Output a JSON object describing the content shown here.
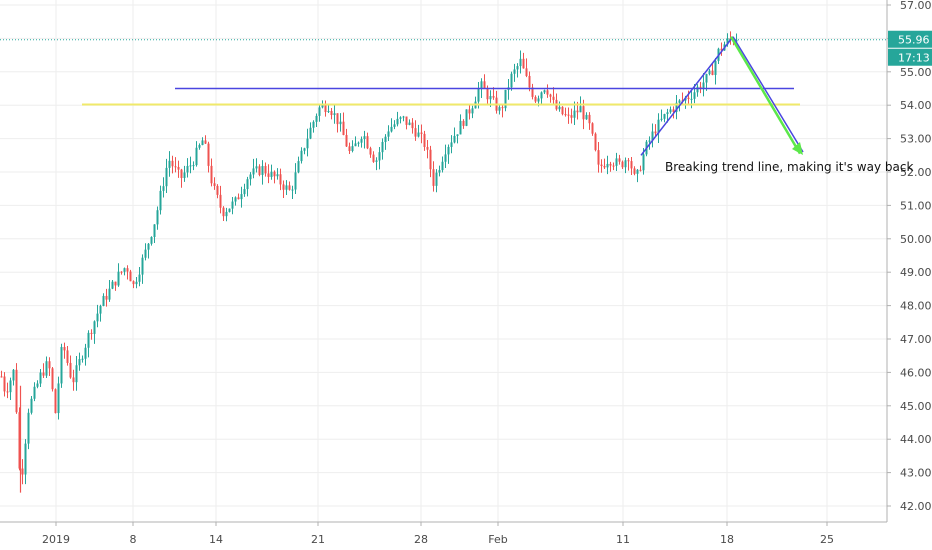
{
  "chart_data": {
    "type": "candlestick",
    "title": "",
    "xlabel": "",
    "ylabel": "",
    "ylim": [
      41.6,
      57.2
    ],
    "y_ticks": [
      "42.00",
      "43.00",
      "44.00",
      "45.00",
      "46.00",
      "47.00",
      "48.00",
      "49.00",
      "50.00",
      "51.00",
      "52.00",
      "53.00",
      "54.00",
      "55.00",
      "56.00",
      "57.00"
    ],
    "x_ticks": [
      "2019",
      "8",
      "14",
      "21",
      "28",
      "Feb",
      "11",
      "18",
      "25"
    ],
    "last_price": "55.96",
    "countdown": "17:13",
    "grid": true,
    "up_color": "#26a69a",
    "down_color": "#ef5350",
    "price_badge_color": "#26a69a",
    "timer_badge_color": "#26a69a",
    "waypoints": [
      [
        0,
        46.0
      ],
      [
        5,
        45.4
      ],
      [
        14,
        46.1
      ],
      [
        20,
        42.5
      ],
      [
        28,
        44.9
      ],
      [
        40,
        45.9
      ],
      [
        48,
        46.3
      ],
      [
        55,
        44.8
      ],
      [
        62,
        46.9
      ],
      [
        72,
        45.7
      ],
      [
        88,
        47.1
      ],
      [
        100,
        48.0
      ],
      [
        118,
        48.9
      ],
      [
        126,
        49.2
      ],
      [
        133,
        48.6
      ],
      [
        145,
        49.6
      ],
      [
        155,
        50.6
      ],
      [
        168,
        52.4
      ],
      [
        180,
        51.8
      ],
      [
        192,
        52.3
      ],
      [
        203,
        53.0
      ],
      [
        212,
        51.6
      ],
      [
        222,
        50.8
      ],
      [
        235,
        51.1
      ],
      [
        248,
        51.9
      ],
      [
        262,
        52.1
      ],
      [
        276,
        51.8
      ],
      [
        290,
        51.4
      ],
      [
        305,
        52.9
      ],
      [
        318,
        53.9
      ],
      [
        328,
        54.0
      ],
      [
        338,
        53.5
      ],
      [
        350,
        52.5
      ],
      [
        362,
        53.2
      ],
      [
        375,
        52.3
      ],
      [
        388,
        53.3
      ],
      [
        402,
        53.6
      ],
      [
        416,
        53.2
      ],
      [
        425,
        52.8
      ],
      [
        433,
        51.7
      ],
      [
        445,
        52.7
      ],
      [
        458,
        53.3
      ],
      [
        470,
        53.9
      ],
      [
        480,
        54.6
      ],
      [
        492,
        54.1
      ],
      [
        500,
        53.8
      ],
      [
        510,
        54.8
      ],
      [
        520,
        55.3
      ],
      [
        528,
        54.6
      ],
      [
        535,
        54.2
      ],
      [
        545,
        54.6
      ],
      [
        555,
        53.9
      ],
      [
        568,
        53.6
      ],
      [
        580,
        53.9
      ],
      [
        590,
        53.3
      ],
      [
        598,
        52.1
      ],
      [
        608,
        52.4
      ],
      [
        620,
        52.2
      ],
      [
        628,
        52.5
      ],
      [
        635,
        51.7
      ],
      [
        645,
        52.7
      ],
      [
        655,
        53.3
      ],
      [
        668,
        53.8
      ],
      [
        680,
        54.1
      ],
      [
        690,
        54.3
      ],
      [
        700,
        54.6
      ],
      [
        710,
        54.9
      ],
      [
        718,
        55.6
      ],
      [
        726,
        55.9
      ],
      [
        733,
        56.0
      ],
      [
        738,
        55.96
      ]
    ],
    "annotations": [
      {
        "text": "Breaking trend line, making it's way back"
      }
    ]
  }
}
